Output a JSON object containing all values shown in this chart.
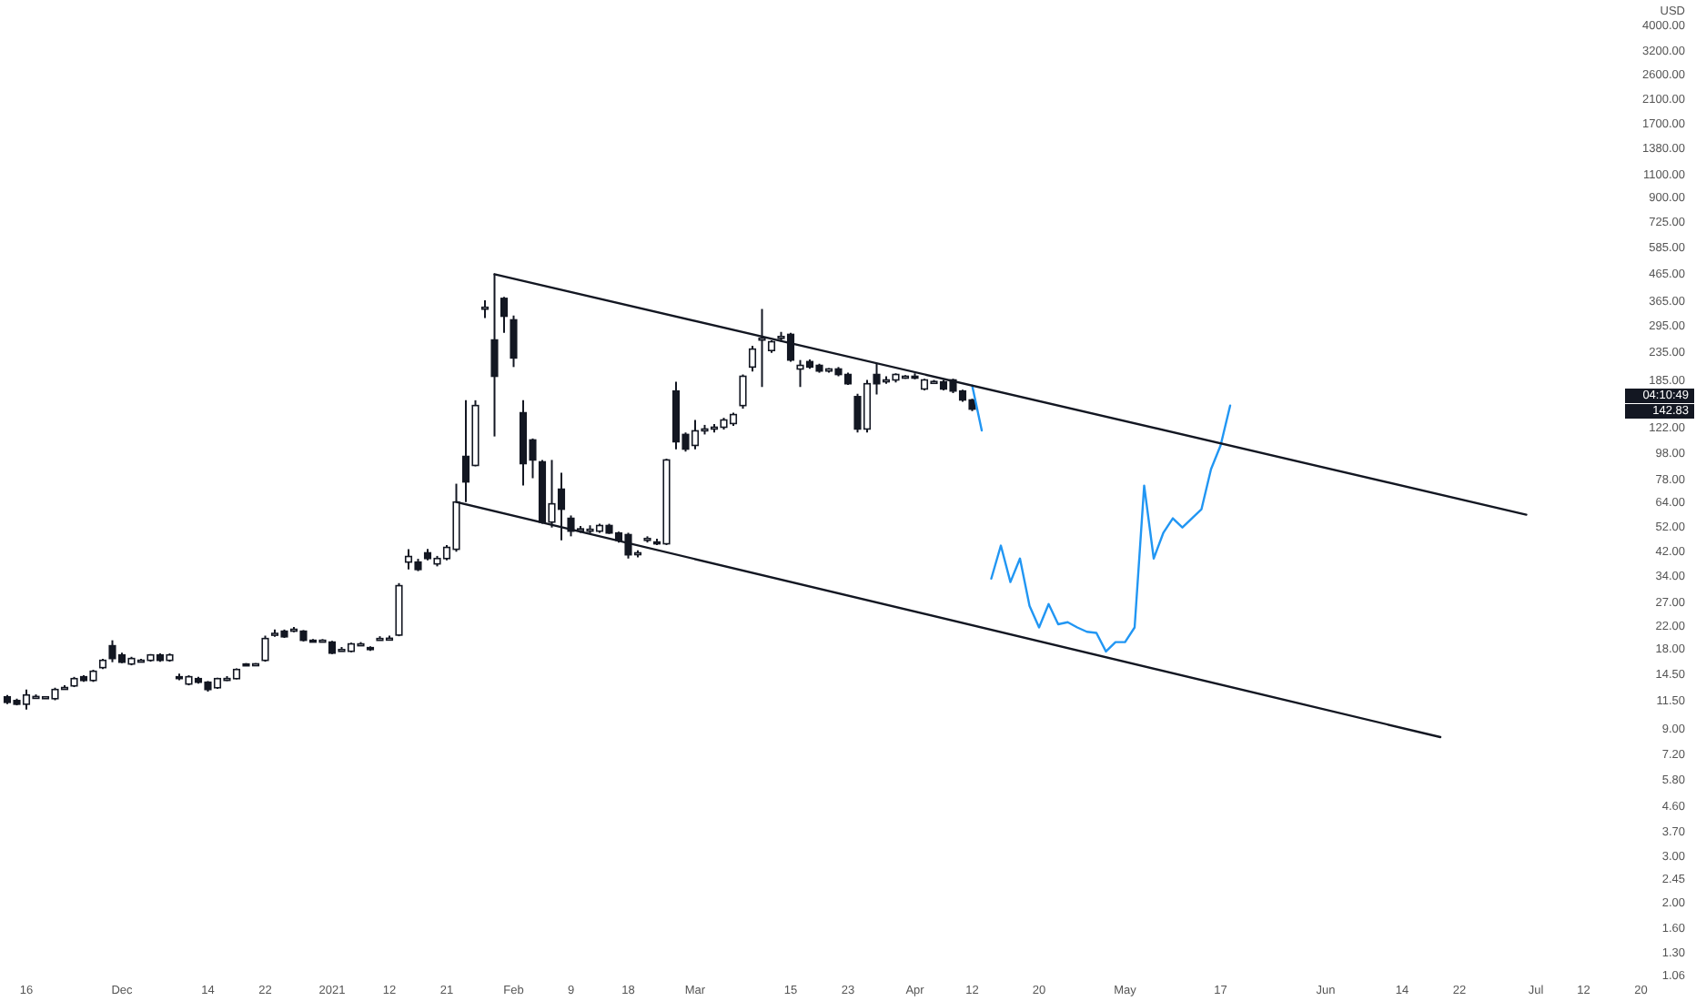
{
  "chart_data": {
    "type": "candlestick",
    "color": "#131722",
    "log": "y",
    "ylabel": "USD",
    "ylim": [
      0.857,
      5000
    ],
    "categories": [
      null,
      null,
      "16",
      null,
      null,
      null,
      null,
      null,
      null,
      null,
      null,
      null,
      "Dec",
      null,
      null,
      null,
      null,
      null,
      null,
      null,
      null,
      "14",
      null,
      null,
      null,
      null,
      null,
      "22",
      null,
      null,
      null,
      null,
      null,
      null,
      "2021",
      null,
      null,
      null,
      null,
      null,
      "12",
      null,
      null,
      null,
      null,
      null,
      "21",
      null,
      null,
      null,
      null,
      null,
      null,
      "Feb",
      null,
      null,
      null,
      null,
      null,
      "9",
      null,
      null,
      null,
      null,
      null,
      "18",
      null,
      null,
      null,
      null,
      null,
      null,
      "Mar",
      null,
      null,
      null,
      null,
      null,
      null,
      null,
      null,
      null,
      "15",
      null,
      null,
      null,
      null,
      null,
      "23",
      null,
      null,
      null,
      null,
      null,
      null,
      "Apr",
      null,
      null,
      null,
      null,
      null,
      "12",
      null,
      null,
      null,
      null,
      null,
      null,
      "20",
      null,
      null,
      null,
      null,
      null,
      null,
      null,
      null,
      "May",
      null,
      null,
      null,
      null,
      null,
      null,
      null,
      null,
      null,
      "17",
      null,
      null,
      null,
      null,
      null,
      null,
      null,
      null,
      null,
      null,
      "Jun",
      null,
      null,
      null,
      null,
      null,
      null,
      null,
      "14",
      null,
      null,
      null,
      null,
      null,
      "22",
      null,
      null,
      null,
      null,
      null,
      null,
      null,
      "Jul",
      null,
      null,
      null,
      null,
      "12",
      null,
      null,
      null,
      null,
      null,
      "20",
      null,
      null,
      null,
      null,
      null
    ],
    "yticks": [
      {
        "value": 4000,
        "label": "4000.00"
      },
      {
        "value": 3200,
        "label": "3200.00"
      },
      {
        "value": 2600,
        "label": "2600.00"
      },
      {
        "value": 2100,
        "label": "2100.00"
      },
      {
        "value": 1700,
        "label": "1700.00"
      },
      {
        "value": 1380,
        "label": "1380.00"
      },
      {
        "value": 1100,
        "label": "1100.00"
      },
      {
        "value": 900,
        "label": "900.00"
      },
      {
        "value": 725,
        "label": "725.00"
      },
      {
        "value": 585,
        "label": "585.00"
      },
      {
        "value": 465,
        "label": "465.00"
      },
      {
        "value": 365,
        "label": "365.00"
      },
      {
        "value": 295,
        "label": "295.00"
      },
      {
        "value": 235,
        "label": "235.00"
      },
      {
        "value": 185,
        "label": "185.00"
      },
      {
        "value": 122,
        "label": "122.00"
      },
      {
        "value": 98,
        "label": "98.00"
      },
      {
        "value": 78,
        "label": "78.00"
      },
      {
        "value": 64,
        "label": "64.00"
      },
      {
        "value": 52,
        "label": "52.00"
      },
      {
        "value": 42,
        "label": "42.00"
      },
      {
        "value": 34,
        "label": "34.00"
      },
      {
        "value": 27,
        "label": "27.00"
      },
      {
        "value": 22,
        "label": "22.00"
      },
      {
        "value": 18,
        "label": "18.00"
      },
      {
        "value": 14.5,
        "label": "14.50"
      },
      {
        "value": 11.5,
        "label": "11.50"
      },
      {
        "value": 9,
        "label": "9.00"
      },
      {
        "value": 7.2,
        "label": "7.20"
      },
      {
        "value": 5.8,
        "label": "5.80"
      },
      {
        "value": 4.6,
        "label": "4.60"
      },
      {
        "value": 3.7,
        "label": "3.70"
      },
      {
        "value": 3,
        "label": "3.00"
      },
      {
        "value": 2.45,
        "label": "2.45"
      },
      {
        "value": 2,
        "label": "2.00"
      },
      {
        "value": 1.6,
        "label": "1.60"
      },
      {
        "value": 1.3,
        "label": "1.30"
      },
      {
        "value": 1.06,
        "label": "1.06"
      }
    ],
    "ohlc": [
      [
        11.95,
        12.14,
        11.21,
        11.39
      ],
      [
        11.57,
        11.76,
        11.1,
        11.21
      ],
      [
        11.21,
        12.73,
        10.69,
        12.14
      ],
      [
        11.95,
        12.2,
        11.8,
        11.98
      ],
      [
        11.9,
        12.0,
        11.85,
        11.95
      ],
      [
        11.76,
        12.93,
        11.6,
        12.73
      ],
      [
        12.93,
        13.2,
        12.7,
        12.95
      ],
      [
        13.14,
        14.2,
        13.0,
        13.99
      ],
      [
        14.22,
        14.4,
        13.6,
        13.77
      ],
      [
        13.77,
        15.1,
        13.6,
        14.91
      ],
      [
        15.39,
        16.6,
        15.2,
        16.39
      ],
      [
        18.6,
        19.5,
        16.13,
        16.65
      ],
      [
        17.18,
        17.5,
        16.0,
        16.13
      ],
      [
        15.88,
        16.9,
        15.7,
        16.65
      ],
      [
        16.39,
        16.6,
        16.2,
        16.4
      ],
      [
        16.39,
        17.3,
        16.2,
        17.18
      ],
      [
        17.18,
        17.4,
        16.2,
        16.39
      ],
      [
        16.39,
        17.4,
        16.2,
        17.18
      ],
      [
        14.22,
        14.6,
        13.8,
        14.2
      ],
      [
        13.35,
        14.4,
        13.2,
        14.22
      ],
      [
        13.99,
        14.2,
        13.4,
        13.56
      ],
      [
        13.56,
        13.7,
        12.5,
        12.73
      ],
      [
        12.93,
        14.1,
        12.8,
        13.99
      ],
      [
        13.99,
        14.3,
        13.7,
        14.0
      ],
      [
        13.99,
        15.3,
        13.9,
        15.14
      ],
      [
        15.88,
        16.0,
        15.7,
        15.85
      ],
      [
        15.88,
        16.0,
        15.7,
        15.9
      ],
      [
        16.39,
        20.3,
        16.2,
        19.8
      ],
      [
        20.7,
        21.4,
        20.1,
        20.7
      ],
      [
        21.1,
        21.4,
        19.9,
        20.1
      ],
      [
        21.4,
        21.9,
        20.9,
        21.45
      ],
      [
        21.1,
        21.3,
        19.3,
        19.5
      ],
      [
        19.5,
        19.7,
        19.3,
        19.45
      ],
      [
        19.5,
        19.7,
        19.3,
        19.5
      ],
      [
        19.2,
        19.4,
        17.3,
        17.45
      ],
      [
        18.0,
        18.4,
        17.7,
        18.0
      ],
      [
        17.73,
        19.1,
        17.6,
        18.9
      ],
      [
        18.9,
        19.2,
        18.6,
        18.9
      ],
      [
        18.3,
        18.5,
        17.8,
        18.0
      ],
      [
        19.8,
        20.2,
        19.5,
        19.8
      ],
      [
        19.8,
        20.3,
        19.5,
        19.85
      ],
      [
        20.4,
        32,
        20.2,
        31.3
      ],
      [
        38.4,
        42.9,
        36.0,
        40.3
      ],
      [
        38.4,
        39.5,
        35.5,
        36.0
      ],
      [
        41.6,
        43,
        39,
        39.6
      ],
      [
        37.8,
        40.5,
        37,
        39.6
      ],
      [
        39.6,
        44.5,
        39,
        43.6
      ],
      [
        42.9,
        75.7,
        42,
        64.6
      ],
      [
        95.9,
        156,
        64.6,
        76.9
      ],
      [
        88.7,
        156,
        88,
        149
      ],
      [
        345,
        371,
        318,
        349
      ],
      [
        263,
        465,
        114,
        192
      ],
      [
        377,
        382,
        280,
        323
      ],
      [
        313,
        325,
        208,
        225
      ],
      [
        140,
        156,
        74.5,
        90.1
      ],
      [
        110.6,
        112,
        79.4,
        93
      ],
      [
        91.5,
        93,
        53.5,
        54.3
      ],
      [
        54.3,
        93,
        51.8,
        63.6
      ],
      [
        72.2,
        83.2,
        46.4,
        60.7
      ],
      [
        56.1,
        57.5,
        48,
        50.2
      ],
      [
        51,
        52.5,
        49.5,
        51.2
      ],
      [
        51,
        52.8,
        49.3,
        51
      ],
      [
        50.2,
        53.5,
        49.5,
        52.7
      ],
      [
        52.7,
        53.5,
        49,
        49.4
      ],
      [
        49.4,
        50,
        45.5,
        46.4
      ],
      [
        48.7,
        49.5,
        39.6,
        40.9
      ],
      [
        41.3,
        42.5,
        40,
        41.6
      ],
      [
        46.8,
        48,
        45.5,
        47.1
      ],
      [
        45.7,
        47,
        44.5,
        45.5
      ],
      [
        45,
        94,
        44.5,
        93
      ],
      [
        169,
        183,
        102,
        108.9
      ],
      [
        116,
        118,
        100,
        102.2
      ],
      [
        105.5,
        131.5,
        102,
        119.7
      ],
      [
        121,
        126,
        116,
        121.6
      ],
      [
        122,
        127,
        118,
        123.5
      ],
      [
        123.5,
        134,
        121,
        131.5
      ],
      [
        127.5,
        140,
        125,
        137.8
      ],
      [
        149,
        195,
        145,
        192
      ],
      [
        208,
        250,
        200,
        243
      ],
      [
        265,
        344,
        175,
        267
      ],
      [
        240,
        262,
        235,
        259
      ],
      [
        268,
        282,
        259,
        271
      ],
      [
        276,
        280,
        218,
        221
      ],
      [
        204.5,
        221,
        175,
        211
      ],
      [
        218,
        222,
        205,
        208
      ],
      [
        211,
        214,
        198,
        201
      ],
      [
        201,
        206,
        198,
        204.5
      ],
      [
        204.5,
        208,
        192,
        195
      ],
      [
        195,
        198,
        178,
        180
      ],
      [
        161,
        165,
        118,
        121.6
      ],
      [
        121.6,
        186,
        118,
        180
      ],
      [
        195,
        214.5,
        164,
        180
      ],
      [
        186,
        192,
        180,
        186
      ],
      [
        186,
        197,
        182,
        195
      ],
      [
        192,
        194,
        188,
        192
      ],
      [
        192,
        197,
        187,
        191
      ],
      [
        172,
        188,
        170,
        186
      ],
      [
        183,
        186,
        180,
        183.5
      ],
      [
        183,
        186,
        170,
        172
      ],
      [
        186,
        188,
        166,
        169
      ],
      [
        169,
        171,
        154,
        156.4
      ],
      [
        156.4,
        158,
        142,
        144.5
      ],
      null,
      null,
      null,
      null,
      null,
      null,
      null,
      null,
      null,
      null,
      null,
      null,
      null,
      null,
      null,
      null,
      null,
      null,
      null,
      null,
      null,
      null,
      null,
      null,
      null,
      null,
      null,
      null,
      null,
      null,
      null,
      null,
      null,
      null,
      null,
      null,
      null,
      null,
      null,
      null,
      null,
      null,
      null,
      null,
      null,
      null,
      null,
      null,
      null,
      null,
      null,
      null,
      null,
      null,
      null,
      null,
      null,
      null,
      null,
      null,
      null,
      null,
      null,
      null,
      null,
      null,
      null,
      null,
      null,
      null,
      null,
      null,
      null,
      null,
      null
    ],
    "series": [
      {
        "type": "line",
        "color": "#2196f3",
        "line_style": "solid",
        "values": [
          null,
          null,
          null,
          null,
          null,
          null,
          null,
          null,
          null,
          null,
          null,
          null,
          null,
          null,
          null,
          null,
          null,
          null,
          null,
          null,
          null,
          null,
          null,
          null,
          null,
          null,
          null,
          null,
          null,
          null,
          null,
          null,
          null,
          null,
          null,
          null,
          null,
          null,
          null,
          null,
          null,
          null,
          null,
          null,
          null,
          null,
          null,
          null,
          null,
          null,
          null,
          null,
          null,
          null,
          null,
          null,
          null,
          null,
          null,
          null,
          null,
          null,
          null,
          null,
          null,
          null,
          null,
          null,
          null,
          null,
          null,
          null,
          null,
          null,
          null,
          null,
          null,
          null,
          null,
          null,
          null,
          null,
          null,
          null,
          null,
          null,
          null,
          null,
          null,
          null,
          null,
          null,
          null,
          null,
          null,
          null,
          null,
          null,
          null,
          null,
          null,
          177,
          120,
          null,
          null,
          null,
          null,
          null,
          null,
          null,
          null,
          null,
          null,
          null,
          null,
          null,
          null,
          null,
          null,
          null,
          null,
          null,
          null,
          null,
          null,
          null,
          null,
          null,
          null,
          null,
          null,
          null,
          null,
          null,
          null,
          null,
          null,
          null,
          null,
          null,
          null,
          null,
          null,
          null,
          null,
          null,
          null,
          null,
          null,
          null,
          null,
          null,
          null,
          null,
          null,
          null,
          null,
          null,
          null,
          null,
          null,
          null,
          null,
          null,
          null,
          null,
          null,
          null,
          null,
          null,
          null,
          null,
          null,
          null,
          null,
          null,
          null
        ]
      },
      {
        "type": "line",
        "color": "#2196f3",
        "line_style": "solid",
        "values": [
          null,
          null,
          null,
          null,
          null,
          null,
          null,
          null,
          null,
          null,
          null,
          null,
          null,
          null,
          null,
          null,
          null,
          null,
          null,
          null,
          null,
          null,
          null,
          null,
          null,
          null,
          null,
          null,
          null,
          null,
          null,
          null,
          null,
          null,
          null,
          null,
          null,
          null,
          null,
          null,
          null,
          null,
          null,
          null,
          null,
          null,
          null,
          null,
          null,
          null,
          null,
          null,
          null,
          null,
          null,
          null,
          null,
          null,
          null,
          null,
          null,
          null,
          null,
          null,
          null,
          null,
          null,
          null,
          null,
          null,
          null,
          null,
          null,
          null,
          null,
          null,
          null,
          null,
          null,
          null,
          null,
          null,
          null,
          null,
          null,
          null,
          null,
          null,
          null,
          null,
          null,
          null,
          null,
          null,
          null,
          null,
          null,
          null,
          null,
          null,
          null,
          null,
          null,
          33.3,
          44.3,
          32.3,
          39.6,
          26.3,
          21.8,
          26.7,
          22.4,
          22.8,
          21.8,
          21.0,
          20.8,
          17.7,
          19.2,
          19.2,
          21.8,
          74.5,
          39.6,
          49.4,
          56.1,
          51.8,
          56.1,
          60.7,
          85.9,
          105.5,
          149,
          null,
          null,
          null,
          null,
          null,
          null,
          null,
          null,
          null,
          null,
          null,
          null,
          null,
          null,
          null,
          null,
          null,
          null,
          null,
          null,
          null,
          null,
          null,
          null,
          null,
          null,
          null,
          null,
          null,
          null,
          null,
          null,
          null,
          null,
          null,
          null,
          null,
          null,
          null,
          null,
          null,
          null,
          null,
          null,
          null,
          null,
          null,
          null
        ]
      },
      {
        "type": "line",
        "color": "#131722",
        "line_style": "solid",
        "values": [
          null,
          null,
          null,
          null,
          null,
          null,
          null,
          null,
          null,
          null,
          null,
          null,
          null,
          null,
          null,
          null,
          null,
          null,
          null,
          null,
          null,
          null,
          null,
          null,
          null,
          null,
          null,
          null,
          null,
          null,
          null,
          null,
          null,
          null,
          null,
          null,
          null,
          null,
          null,
          null,
          null,
          null,
          null,
          null,
          null,
          null,
          null,
          null,
          null,
          null,
          null,
          465,
          null,
          null,
          null,
          null,
          null,
          null,
          null,
          null,
          null,
          null,
          null,
          null,
          null,
          null,
          null,
          null,
          null,
          null,
          null,
          null,
          null,
          null,
          null,
          null,
          null,
          null,
          null,
          null,
          null,
          null,
          null,
          null,
          null,
          null,
          null,
          null,
          null,
          null,
          null,
          null,
          null,
          null,
          null,
          null,
          null,
          null,
          null,
          null,
          null,
          null,
          null,
          null,
          null,
          null,
          null,
          null,
          null,
          null,
          null,
          null,
          null,
          null,
          null,
          null,
          null,
          null,
          null,
          null,
          null,
          null,
          null,
          null,
          null,
          null,
          null,
          null,
          null,
          null,
          null,
          null,
          null,
          null,
          null,
          null,
          null,
          null,
          null,
          null,
          null,
          null,
          null,
          null,
          null,
          null,
          null,
          null,
          null,
          null,
          null,
          null,
          null,
          null,
          null,
          null,
          null,
          null,
          null,
          57.9,
          null,
          null,
          null,
          null,
          null,
          null,
          null,
          null,
          null,
          null,
          null,
          null,
          null,
          null,
          null,
          null,
          null
        ]
      },
      {
        "type": "line",
        "color": "#131722",
        "line_style": "solid",
        "values": [
          null,
          null,
          null,
          null,
          null,
          null,
          null,
          null,
          null,
          null,
          null,
          null,
          null,
          null,
          null,
          null,
          null,
          null,
          null,
          null,
          null,
          null,
          null,
          null,
          null,
          null,
          null,
          null,
          null,
          null,
          null,
          null,
          null,
          null,
          null,
          null,
          null,
          null,
          null,
          null,
          null,
          null,
          null,
          null,
          null,
          null,
          null,
          64.6,
          null,
          null,
          null,
          null,
          null,
          null,
          null,
          null,
          null,
          null,
          null,
          null,
          null,
          null,
          null,
          null,
          null,
          null,
          null,
          null,
          null,
          null,
          null,
          null,
          null,
          null,
          null,
          null,
          null,
          null,
          null,
          null,
          null,
          null,
          null,
          null,
          null,
          null,
          null,
          null,
          null,
          null,
          null,
          null,
          null,
          null,
          null,
          null,
          null,
          null,
          null,
          null,
          null,
          null,
          null,
          null,
          null,
          null,
          null,
          null,
          null,
          null,
          null,
          null,
          null,
          null,
          null,
          null,
          null,
          null,
          null,
          null,
          null,
          null,
          null,
          null,
          null,
          null,
          null,
          null,
          null,
          null,
          null,
          null,
          null,
          null,
          null,
          null,
          null,
          null,
          null,
          null,
          null,
          null,
          null,
          null,
          null,
          null,
          null,
          null,
          null,
          null,
          8.43,
          null,
          null,
          null,
          null,
          null,
          null,
          null,
          null,
          null,
          null,
          null,
          null,
          null,
          null,
          null,
          null,
          null,
          null,
          null,
          null,
          null,
          null,
          null,
          null,
          null,
          null
        ]
      }
    ],
    "annotations": [
      "142.83",
      "04:10:49"
    ]
  }
}
